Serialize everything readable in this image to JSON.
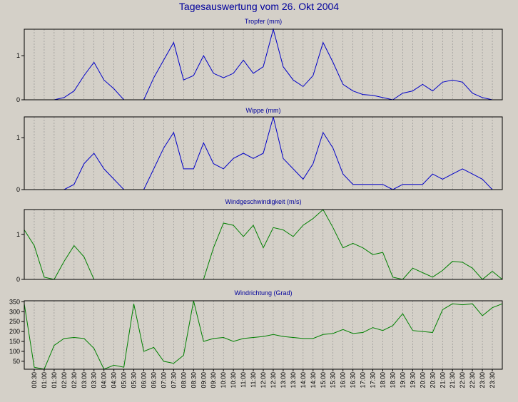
{
  "title": "Tagesauswertung vom 26. Okt 2004",
  "colors": {
    "background": "#d4d0c8",
    "title": "#00009c",
    "blue_series": "#0000c8",
    "green_series": "#008000",
    "grid": "#888888"
  },
  "chart_data": [
    {
      "type": "line",
      "title": "Tropfer (mm)",
      "color": "blue",
      "ylim": [
        0,
        1.6
      ],
      "yticks": [
        "0",
        "1"
      ],
      "x_start": "00:00",
      "x_step_minutes": 30,
      "values": [
        0,
        0,
        0,
        0,
        0.05,
        0.2,
        0.55,
        0.85,
        0.45,
        0.25,
        0,
        0,
        0,
        0.5,
        0.9,
        1.3,
        0.45,
        0.55,
        1.0,
        0.6,
        0.5,
        0.6,
        0.9,
        0.6,
        0.75,
        1.6,
        0.75,
        0.45,
        0.3,
        0.55,
        1.3,
        0.85,
        0.35,
        0.2,
        0.12,
        0.1,
        0.05,
        0,
        0.15,
        0.2,
        0.35,
        0.2,
        0.4,
        0.45,
        0.4,
        0.15,
        0.05,
        0,
        0
      ]
    },
    {
      "type": "line",
      "title": "Wippe (mm)",
      "color": "blue",
      "ylim": [
        0,
        1.4
      ],
      "yticks": [
        "0",
        "1"
      ],
      "x_start": "00:00",
      "x_step_minutes": 30,
      "values": [
        0,
        0,
        0,
        0,
        0,
        0.1,
        0.5,
        0.7,
        0.4,
        0.2,
        0,
        0,
        0,
        0.4,
        0.8,
        1.1,
        0.4,
        0.4,
        0.9,
        0.5,
        0.4,
        0.6,
        0.7,
        0.6,
        0.7,
        1.4,
        0.6,
        0.4,
        0.2,
        0.5,
        1.1,
        0.8,
        0.3,
        0.1,
        0.1,
        0.1,
        0.1,
        0,
        0.1,
        0.1,
        0.1,
        0.3,
        0.2,
        0.3,
        0.4,
        0.3,
        0.2,
        0,
        0
      ]
    },
    {
      "type": "line",
      "title": "Windgeschwindigkeit (m/s)",
      "color": "green",
      "ylim": [
        0,
        1.55
      ],
      "yticks": [
        "0",
        "1"
      ],
      "x_start": "00:00",
      "x_step_minutes": 30,
      "values": [
        1.1,
        0.75,
        0.05,
        0,
        0.4,
        0.75,
        0.5,
        0,
        0,
        0,
        0,
        0,
        0,
        0,
        0,
        0,
        0,
        0,
        0,
        0.7,
        1.25,
        1.2,
        0.95,
        1.2,
        0.7,
        1.15,
        1.1,
        0.95,
        1.2,
        1.35,
        1.55,
        1.15,
        0.7,
        0.8,
        0.7,
        0.55,
        0.6,
        0.05,
        0,
        0.25,
        0.15,
        0.05,
        0.2,
        0.4,
        0.38,
        0.25,
        0,
        0.18,
        0
      ]
    },
    {
      "type": "line",
      "title": "Windrichtung (Grad)",
      "color": "green",
      "ylim": [
        10,
        355
      ],
      "yticks": [
        "50",
        "100",
        "150",
        "200",
        "250",
        "300",
        "350"
      ],
      "x_start": "00:00",
      "x_step_minutes": 30,
      "values": [
        340,
        20,
        10,
        130,
        165,
        170,
        165,
        115,
        10,
        30,
        20,
        340,
        100,
        120,
        50,
        40,
        80,
        355,
        150,
        165,
        170,
        150,
        165,
        170,
        175,
        185,
        175,
        170,
        165,
        165,
        185,
        190,
        210,
        190,
        195,
        220,
        205,
        230,
        290,
        205,
        200,
        195,
        310,
        340,
        335,
        340,
        280,
        320,
        340
      ]
    }
  ],
  "x_tick_labels": [
    "00:30",
    "01:00",
    "01:30",
    "02:00",
    "02:30",
    "03:00",
    "03:30",
    "04:00",
    "04:30",
    "05:00",
    "05:30",
    "06:00",
    "06:30",
    "07:00",
    "07:30",
    "08:00",
    "08:30",
    "09:00",
    "09:30",
    "10:00",
    "10:30",
    "11:00",
    "11:30",
    "12:00",
    "12:30",
    "13:00",
    "13:30",
    "14:00",
    "14:30",
    "15:00",
    "15:30",
    "16:00",
    "16:30",
    "17:00",
    "17:30",
    "18:00",
    "18:30",
    "19:00",
    "19:30",
    "20:00",
    "20:30",
    "21:00",
    "21:30",
    "22:00",
    "22:30",
    "23:00",
    "23:30"
  ]
}
